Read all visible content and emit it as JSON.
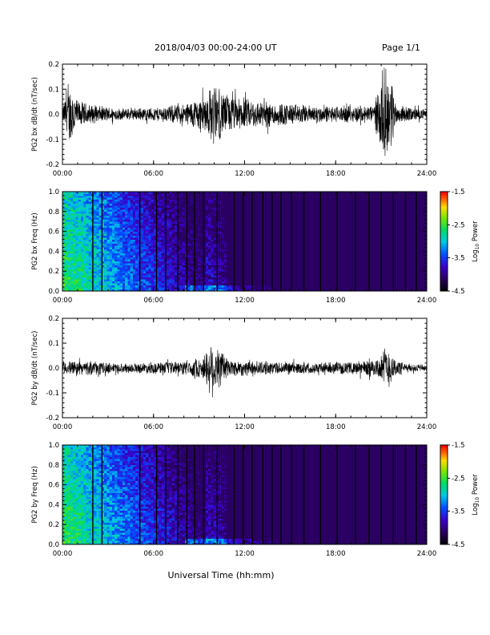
{
  "header": {
    "title": "2018/04/03  00:00-24:00 UT",
    "page": "Page 1/1"
  },
  "xlabel": "Universal Time (hh:mm)",
  "chart_data": [
    {
      "type": "line",
      "ylabel": "PG2 bx dB/dt (nT/sec)",
      "xticks": [
        "00:00",
        "06:00",
        "12:00",
        "18:00",
        "24:00"
      ],
      "yticks": [
        "-0.2",
        "-0.1",
        "0.0",
        "0.1",
        "0.2"
      ],
      "xlim": [
        0,
        24
      ],
      "ylim": [
        -0.2,
        0.2
      ],
      "envelope": [
        {
          "t": 0.0,
          "a": 0.03
        },
        {
          "t": 0.3,
          "a": 0.1
        },
        {
          "t": 0.6,
          "a": 0.14
        },
        {
          "t": 1.0,
          "a": 0.06
        },
        {
          "t": 2.0,
          "a": 0.04
        },
        {
          "t": 4.0,
          "a": 0.025
        },
        {
          "t": 6.0,
          "a": 0.03
        },
        {
          "t": 8.0,
          "a": 0.045
        },
        {
          "t": 9.5,
          "a": 0.09
        },
        {
          "t": 10.0,
          "a": 0.14
        },
        {
          "t": 10.5,
          "a": 0.1
        },
        {
          "t": 11.5,
          "a": 0.07
        },
        {
          "t": 13.0,
          "a": 0.06
        },
        {
          "t": 14.0,
          "a": 0.055
        },
        {
          "t": 16.0,
          "a": 0.04
        },
        {
          "t": 18.0,
          "a": 0.035
        },
        {
          "t": 20.5,
          "a": 0.04
        },
        {
          "t": 21.2,
          "a": 0.2
        },
        {
          "t": 21.6,
          "a": 0.18
        },
        {
          "t": 22.0,
          "a": 0.04
        },
        {
          "t": 24.0,
          "a": 0.02
        }
      ]
    },
    {
      "type": "heatmap",
      "ylabel": "PG2 bx Freq (Hz)",
      "xticks": [
        "00:00",
        "06:00",
        "12:00",
        "18:00",
        "24:00"
      ],
      "yticks": [
        "0.0",
        "0.2",
        "0.4",
        "0.6",
        "0.8",
        "1.0"
      ],
      "xlim": [
        0,
        24
      ],
      "ylim": [
        0.0,
        1.0
      ],
      "colorbar": {
        "label": "Log10 Power",
        "min": -4.5,
        "max": -1.5,
        "ticks": [
          "-1.5",
          "-2.5",
          "-3.5",
          "-4.5"
        ]
      },
      "gaps": [
        2.0,
        2.6,
        5.1,
        6.2,
        6.8,
        7.6,
        8.2,
        8.7,
        9.3,
        10.2,
        11.3,
        11.9,
        12.5,
        13.2,
        13.8,
        14.4,
        15.1,
        15.9,
        17.0,
        18.1,
        19.3,
        20.2,
        21.0,
        21.8,
        22.6,
        23.3
      ],
      "gap_color": "#000000"
    },
    {
      "type": "line",
      "ylabel": "PG2 by dB/dt (nT/sec)",
      "xticks": [
        "00:00",
        "06:00",
        "12:00",
        "18:00",
        "24:00"
      ],
      "yticks": [
        "-0.2",
        "-0.1",
        "0.0",
        "0.1",
        "0.2"
      ],
      "xlim": [
        0,
        24
      ],
      "ylim": [
        -0.2,
        0.2
      ],
      "envelope": [
        {
          "t": 0.0,
          "a": 0.03
        },
        {
          "t": 2.0,
          "a": 0.03
        },
        {
          "t": 4.0,
          "a": 0.02
        },
        {
          "t": 6.0,
          "a": 0.025
        },
        {
          "t": 8.0,
          "a": 0.03
        },
        {
          "t": 9.3,
          "a": 0.05
        },
        {
          "t": 9.8,
          "a": 0.13
        },
        {
          "t": 10.2,
          "a": 0.1
        },
        {
          "t": 11.0,
          "a": 0.04
        },
        {
          "t": 13.0,
          "a": 0.03
        },
        {
          "t": 16.0,
          "a": 0.025
        },
        {
          "t": 19.0,
          "a": 0.025
        },
        {
          "t": 21.0,
          "a": 0.05
        },
        {
          "t": 21.3,
          "a": 0.11
        },
        {
          "t": 21.8,
          "a": 0.05
        },
        {
          "t": 22.5,
          "a": 0.02
        },
        {
          "t": 24.0,
          "a": 0.015
        }
      ]
    },
    {
      "type": "heatmap",
      "ylabel": "PG2 by Freq (Hz)",
      "xticks": [
        "00:00",
        "06:00",
        "12:00",
        "18:00",
        "24:00"
      ],
      "yticks": [
        "0.0",
        "0.2",
        "0.4",
        "0.6",
        "0.8",
        "1.0"
      ],
      "xlim": [
        0,
        24
      ],
      "ylim": [
        0.0,
        1.0
      ],
      "colorbar": {
        "label": "Log10 Power",
        "min": -4.5,
        "max": -1.5,
        "ticks": [
          "-1.5",
          "-2.5",
          "-3.5",
          "-4.5"
        ]
      },
      "gaps": [
        2.0,
        2.6,
        5.1,
        6.2,
        6.8,
        7.6,
        8.2,
        8.7,
        9.3,
        10.2,
        11.3,
        11.9,
        12.5,
        13.2,
        13.8,
        14.4,
        15.1,
        15.9,
        17.0,
        18.1,
        19.3,
        20.2,
        21.0,
        21.8,
        22.6,
        23.3
      ],
      "gap_color": "#000000"
    }
  ]
}
